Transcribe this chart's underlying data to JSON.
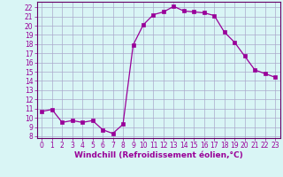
{
  "x": [
    0,
    1,
    2,
    3,
    4,
    5,
    6,
    7,
    8,
    9,
    10,
    11,
    12,
    13,
    14,
    15,
    16,
    17,
    18,
    19,
    20,
    21,
    22,
    23
  ],
  "y": [
    10.7,
    10.9,
    9.5,
    9.7,
    9.5,
    9.7,
    8.7,
    8.3,
    9.3,
    17.9,
    20.1,
    21.2,
    21.5,
    22.1,
    21.6,
    21.5,
    21.4,
    21.1,
    19.3,
    18.2,
    16.7,
    15.2,
    14.8,
    14.4
  ],
  "line_color": "#990099",
  "marker": "s",
  "marker_size": 2.5,
  "bg_color": "#d9f5f5",
  "grid_color": "#aaaacc",
  "xlabel": "Windchill (Refroidissement éolien,°C)",
  "xlabel_color": "#990099",
  "ylim": [
    7.8,
    22.6
  ],
  "xlim": [
    -0.5,
    23.5
  ],
  "yticks": [
    8,
    9,
    10,
    11,
    12,
    13,
    14,
    15,
    16,
    17,
    18,
    19,
    20,
    21,
    22
  ],
  "xticks": [
    0,
    1,
    2,
    3,
    4,
    5,
    6,
    7,
    8,
    9,
    10,
    11,
    12,
    13,
    14,
    15,
    16,
    17,
    18,
    19,
    20,
    21,
    22,
    23
  ],
  "tick_fontsize": 5.5,
  "xlabel_fontsize": 6.5,
  "axis_color": "#990099",
  "spine_color": "#660066"
}
